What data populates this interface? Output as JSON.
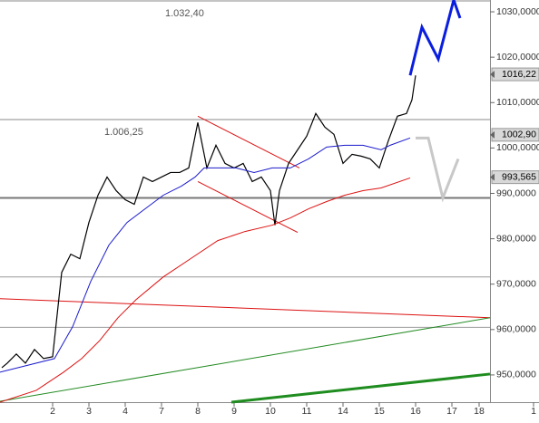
{
  "chart_data": {
    "type": "line",
    "xlim": [
      -0.45,
      13.05
    ],
    "ylim": [
      944.0,
      1032.6
    ],
    "xticks": [
      {
        "value": 1,
        "label": "2"
      },
      {
        "value": 2,
        "label": "3"
      },
      {
        "value": 3,
        "label": "4"
      },
      {
        "value": 4,
        "label": "7"
      },
      {
        "value": 5,
        "label": "8"
      },
      {
        "value": 6,
        "label": "9"
      },
      {
        "value": 7,
        "label": "10"
      },
      {
        "value": 8,
        "label": "11"
      },
      {
        "value": 9,
        "label": "14"
      },
      {
        "value": 10,
        "label": "15"
      },
      {
        "value": 11,
        "label": "16"
      },
      {
        "value": 12,
        "label": "17"
      },
      {
        "value": 12.75,
        "label": "18"
      },
      {
        "value": 14.25,
        "label": "1"
      }
    ],
    "yticks": [
      {
        "value": 950,
        "label": "950,0000"
      },
      {
        "value": 960,
        "label": "960,0000"
      },
      {
        "value": 970,
        "label": "970,0000"
      },
      {
        "value": 980,
        "label": "980,0000"
      },
      {
        "value": 990,
        "label": "990,0000"
      },
      {
        "value": 1000,
        "label": "1000,0000"
      },
      {
        "value": 1010,
        "label": "1010,0000"
      },
      {
        "value": 1020,
        "label": "1020,0000"
      },
      {
        "value": 1030,
        "label": "1030,0000"
      }
    ],
    "series": [
      {
        "color": "#000000",
        "line_width": 1.2,
        "x": [
          -0.4,
          -0.25,
          0,
          0.25,
          0.5,
          0.75,
          1.0,
          1.25,
          1.5,
          1.75,
          2.0,
          2.25,
          2.5,
          2.75,
          3.0,
          3.25,
          3.5,
          3.75,
          4.0,
          4.25,
          4.5,
          4.75,
          5.0,
          5.25,
          5.5,
          5.75,
          6.0,
          6.25,
          6.5,
          6.75,
          7.0,
          7.125,
          7.25,
          7.5,
          7.75,
          8.0,
          8.25,
          8.5,
          8.75,
          9.0,
          9.25,
          9.5,
          9.75,
          10.0,
          10.25,
          10.5,
          10.75,
          10.9,
          11.0
        ],
        "values": [
          951.6,
          952.6,
          954.6,
          952.6,
          955.6,
          953.6,
          954.0,
          972.6,
          976.6,
          975.6,
          983.6,
          989.6,
          993.6,
          990.6,
          988.6,
          987.6,
          993.6,
          992.6,
          993.6,
          994.6,
          994.6,
          995.6,
          1005.6,
          995.6,
          1000.6,
          996.6,
          995.6,
          996.6,
          992.6,
          993.6,
          990.6,
          983.0,
          990.6,
          996.6,
          999.6,
          1002.6,
          1007.6,
          1004.6,
          1003.0,
          996.6,
          998.6,
          998.2,
          997.6,
          995.6,
          1001.6,
          1007.0,
          1007.6,
          1010.6,
          1016.0
        ]
      },
      {
        "color": "#1a1acc",
        "line_width": 1,
        "x": [
          -0.45,
          1.05,
          1.55,
          2.05,
          2.55,
          3.05,
          3.55,
          4.05,
          4.55,
          4.925,
          5.175,
          5.55,
          6.05,
          6.55,
          7.05,
          7.55,
          8.05,
          8.55,
          9.05,
          9.55,
          10.05,
          10.3,
          10.85
        ],
        "values": [
          950.6,
          953.6,
          960.6,
          970.6,
          978.6,
          983.6,
          986.6,
          989.6,
          991.6,
          993.6,
          995.6,
          995.6,
          995.6,
          994.6,
          995.6,
          995.6,
          997.6,
          1000.2,
          1000.6,
          1000.6,
          999.6,
          1000.6,
          1002.2
        ]
      },
      {
        "color": "#dd1111",
        "line_width": 1,
        "x": [
          -0.45,
          0.55,
          1.3,
          1.8,
          2.3,
          2.8,
          3.3,
          4.05,
          4.8,
          5.55,
          6.3,
          7.05,
          7.55,
          8.05,
          8.55,
          9.05,
          9.55,
          10.05,
          10.85
        ],
        "values": [
          944.0,
          946.6,
          950.6,
          953.6,
          957.6,
          962.6,
          966.6,
          971.6,
          975.6,
          979.6,
          981.6,
          983.0,
          984.6,
          986.6,
          988.2,
          989.6,
          990.6,
          991.2,
          993.4
        ]
      },
      {
        "color": "#0a1ee0",
        "line_width": 3,
        "x": [
          10.85,
          11.175,
          11.625,
          12.05,
          12.225
        ],
        "values": [
          1016.0,
          1026.6,
          1019.6,
          1032.6,
          1028.6
        ]
      },
      {
        "color": "#c8c8c8",
        "line_width": 3,
        "x": [
          11.0,
          11.35,
          11.75,
          12.175
        ],
        "values": [
          1002.2,
          1002.2,
          989.0,
          997.6
        ]
      }
    ],
    "trendlines": [
      {
        "color": "#dd1111",
        "line_width": 1,
        "x": [
          5.0,
          7.8
        ],
        "values": [
          1007.0,
          995.6
        ]
      },
      {
        "color": "#dd1111",
        "line_width": 1,
        "x": [
          5.0,
          7.75
        ],
        "values": [
          992.6,
          981.4
        ]
      },
      {
        "color": "#dd1111",
        "line_width": 1,
        "x": [
          -0.45,
          13.05
        ],
        "values": [
          966.8,
          962.6
        ]
      },
      {
        "color": "#228b22",
        "line_width": 1,
        "x": [
          -0.45,
          13.05
        ],
        "values": [
          944.2,
          962.6
        ]
      },
      {
        "color": "#1e8c1e",
        "line_width": 3,
        "x": [
          5.925,
          13.05
        ],
        "values": [
          944.0,
          950.2
        ]
      }
    ],
    "hlines": [
      {
        "value": 1032.4,
        "label": "1.032,40",
        "color": "#888888",
        "line_width": 1
      },
      {
        "value": 1006.25,
        "label": "1.006,25",
        "color": "#888888",
        "line_width": 1
      },
      {
        "value": 989.0,
        "color": "#777777",
        "line_width": 2
      },
      {
        "value": 971.6,
        "color": "#999999",
        "line_width": 1
      },
      {
        "value": 960.5,
        "color": "#999999",
        "line_width": 1
      }
    ],
    "price_badges": [
      {
        "value": 1016.22,
        "label": "1016,22"
      },
      {
        "value": 1002.9,
        "label": "1002,90"
      },
      {
        "value": 993.565,
        "label": "993,565"
      }
    ]
  }
}
